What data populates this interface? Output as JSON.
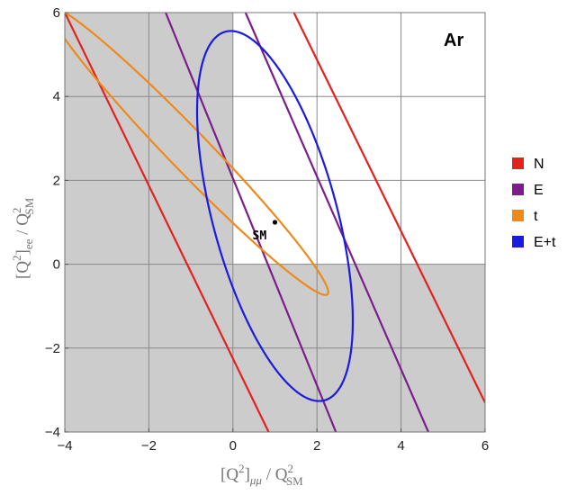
{
  "chart_data": {
    "type": "line",
    "panel_label": "Ar",
    "xlabel": {
      "main": "[Q",
      "sup": "2",
      "close": "]",
      "sub": "μμ",
      "slash": " / Q",
      "sup2": "2",
      "sub2": "SM"
    },
    "ylabel": {
      "main": "[Q",
      "sup": "2",
      "close": "]",
      "sub": "ee",
      "slash": " / Q",
      "sup2": "2",
      "sub2": "SM"
    },
    "xlim": [
      -4,
      6
    ],
    "ylim": [
      -4,
      6
    ],
    "x_ticks": [
      -4,
      -2,
      0,
      2,
      4,
      6
    ],
    "y_ticks": [
      -4,
      -2,
      0,
      2,
      4,
      6
    ],
    "x_tick_labels": [
      "−4",
      "−2",
      "0",
      "2",
      "4",
      "6"
    ],
    "y_tick_labels": [
      "−4",
      "−2",
      "0",
      "2",
      "4",
      "6"
    ],
    "grid": true,
    "shaded_regions": [
      {
        "x": [
          -4,
          0
        ],
        "y": [
          -4,
          6
        ],
        "color": "#cccccc"
      },
      {
        "x": [
          0,
          6
        ],
        "y": [
          -4,
          0
        ],
        "color": "#cccccc"
      }
    ],
    "series": [
      {
        "name": "N",
        "color": "#e2221f",
        "shape": "band",
        "lines": [
          {
            "from": [
              -4,
              6
            ],
            "to": [
              0.85,
              -4
            ]
          },
          {
            "from": [
              1.45,
              6
            ],
            "to": [
              6,
              -3.3
            ]
          }
        ]
      },
      {
        "name": "E",
        "color": "#7a1f8a",
        "shape": "band",
        "lines": [
          {
            "from": [
              -1.6,
              6
            ],
            "to": [
              2.45,
              -4
            ]
          },
          {
            "from": [
              0.3,
              6
            ],
            "to": [
              4.65,
              -4
            ]
          }
        ]
      },
      {
        "name": "t",
        "color": "#ee8a1c",
        "shape": "ellipse",
        "center": [
          -1.05,
          2.7
        ],
        "semi_major": 4.75,
        "semi_minor": 0.48,
        "angle_deg": -46
      },
      {
        "name": "E+t",
        "color": "#1b1be0",
        "shape": "ellipse",
        "center": [
          1.0,
          1.15
        ],
        "semi_major": 4.55,
        "semi_minor": 1.48,
        "angle_deg": -75
      }
    ],
    "points": [
      {
        "label": "SM",
        "x": 1,
        "y": 1
      }
    ],
    "legend": {
      "placement": "right",
      "entries": [
        "N",
        "E",
        "t",
        "E+t"
      ]
    }
  }
}
